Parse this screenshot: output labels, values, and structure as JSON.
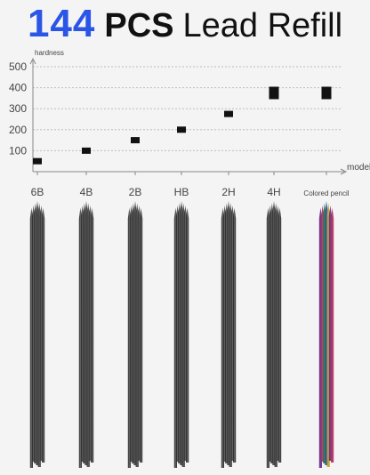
{
  "headline": {
    "quantity": "144",
    "unit": "PCS",
    "product": "Lead Refill"
  },
  "colors": {
    "quantity_blue": "#2b55e6",
    "marker": "#111111",
    "lead_graphite": "#2e2e2e",
    "colored_leads": [
      "#6a2a8a",
      "#b03060",
      "#1f7a4a",
      "#2a4fa0",
      "#c0a020"
    ]
  },
  "chart_data": {
    "type": "scatter",
    "ylabel": "hardness",
    "xlabel": "model",
    "categories": [
      "6B",
      "4B",
      "2B",
      "HB",
      "2H",
      "4H",
      "Colored pencil"
    ],
    "values": [
      50,
      100,
      150,
      200,
      275,
      375,
      375
    ],
    "yticks": [
      100,
      200,
      300,
      400,
      500
    ],
    "ylim": [
      0,
      540
    ],
    "grid": true,
    "marker": "square"
  }
}
